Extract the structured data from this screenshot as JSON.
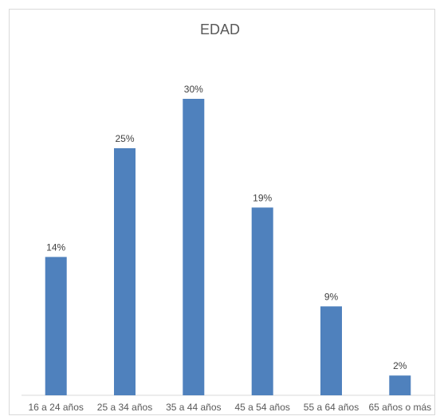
{
  "chart_data": {
    "type": "bar",
    "title": "EDAD",
    "categories": [
      "16 a 24 años",
      "25 a 34 años",
      "35 a 44 años",
      "45 a 54 años",
      "55 a 64 años",
      "65 años o más"
    ],
    "values": [
      14,
      25,
      30,
      19,
      9,
      2
    ],
    "data_labels": [
      "14%",
      "25%",
      "30%",
      "19%",
      "9%",
      "2%"
    ],
    "ylim": [
      0,
      30
    ],
    "grid": false,
    "legend": "none",
    "bar_color": "#4f81bd"
  }
}
